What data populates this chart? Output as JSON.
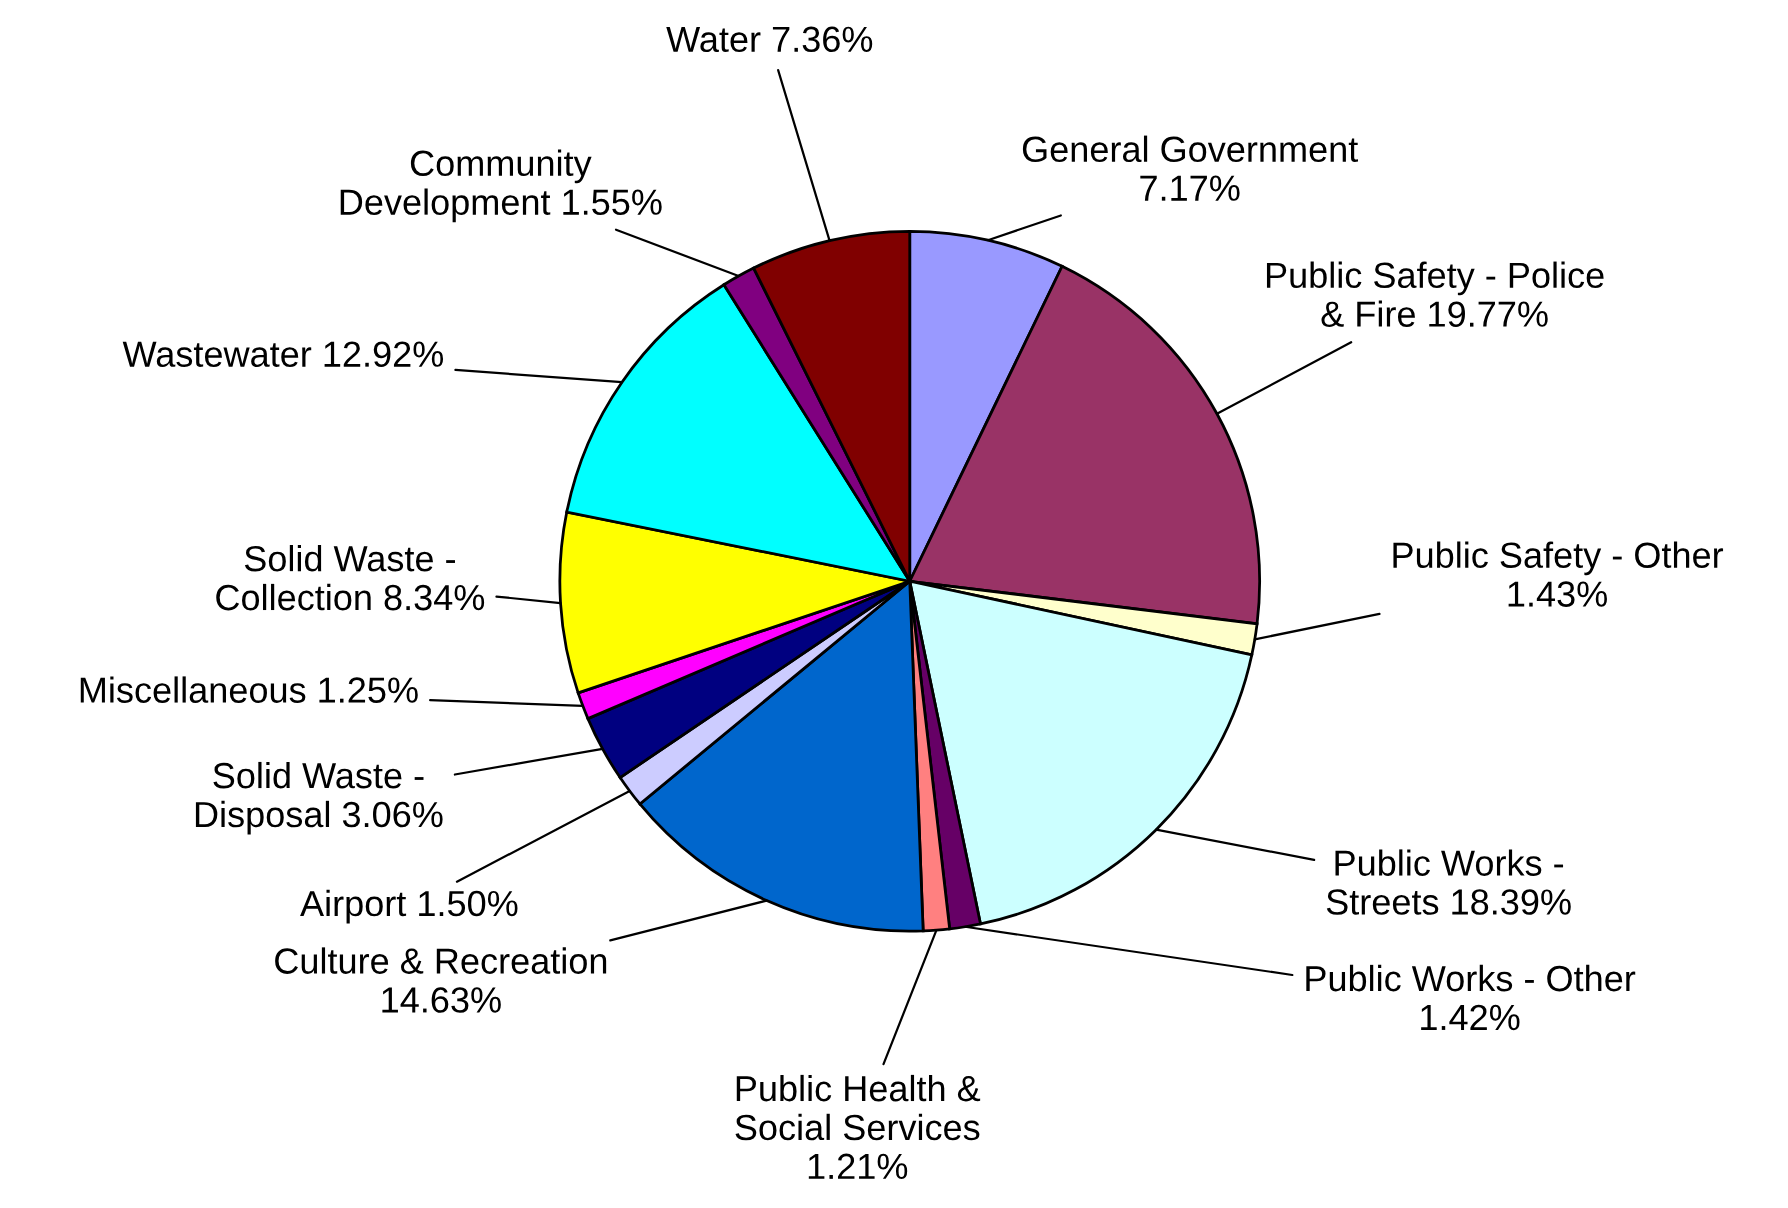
{
  "chart_data": {
    "type": "pie",
    "categories": [
      "General Government\n",
      "Public Safety - Police\n& Fire",
      "Public Safety - Other\n",
      "Public Works -\nStreets",
      "Public Works - Other\n",
      "Public Health &\nSocial Services\n",
      "Culture & Recreation\n",
      "Airport",
      "Solid Waste -\nDisposal",
      "Miscellaneous",
      "Solid Waste -\nCollection",
      "Wastewater",
      "Community\nDevelopment",
      "Water"
    ],
    "values": [
      7.17,
      19.77,
      1.43,
      18.39,
      1.42,
      1.21,
      14.63,
      1.5,
      3.06,
      1.25,
      8.34,
      12.92,
      1.55,
      7.36
    ],
    "value_labels": [
      "7.17%",
      "19.77%",
      "1.43%",
      "18.39%",
      "1.42%",
      "1.21%",
      "14.63%",
      "1.50%",
      "3.06%",
      "1.25%",
      "8.34%",
      "12.92%",
      "1.55%",
      "7.36%"
    ],
    "colors": [
      "#9999ff",
      "#993366",
      "#ffffcc",
      "#ccffff",
      "#660066",
      "#ff8080",
      "#0066cc",
      "#ccccff",
      "#000080",
      "#ff00ff",
      "#ffff00",
      "#00ffff",
      "#800080",
      "#800000"
    ]
  }
}
